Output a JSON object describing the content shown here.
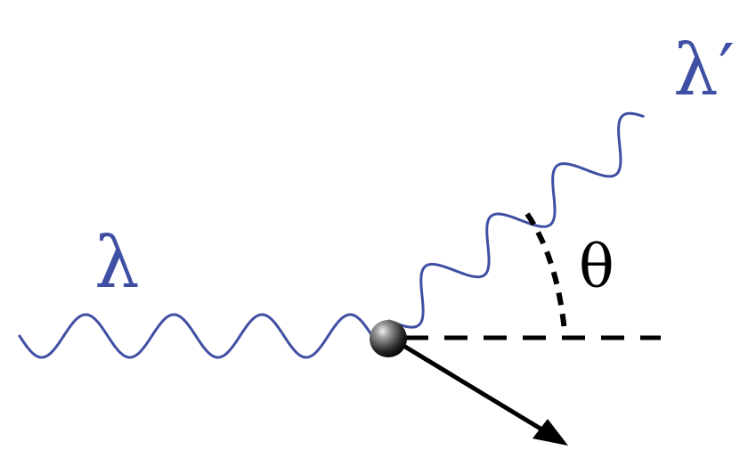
{
  "diagram": {
    "labels": {
      "incident_wavelength": "λ",
      "scattered_wavelength": "λ′",
      "scattering_angle": "θ"
    },
    "colors": {
      "wave": "#3f4fa3",
      "label_wave": "#3f4fa3",
      "line": "#000000",
      "background": "#ffffff"
    }
  }
}
